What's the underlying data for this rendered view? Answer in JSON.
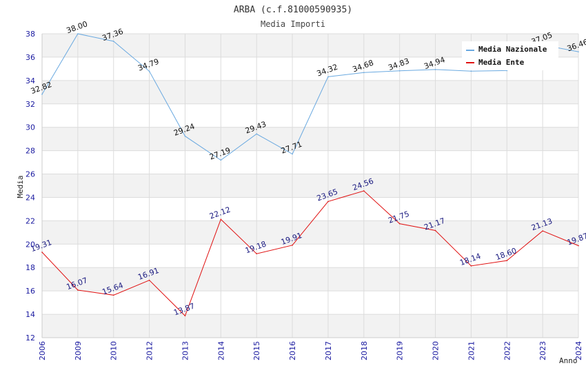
{
  "chart_data": {
    "type": "line",
    "title": "ARBA (c.f.81000590935)",
    "subtitle": "Media Importi",
    "xlabel": "Anno",
    "ylabel": "Media",
    "ylim": [
      12,
      38
    ],
    "yticks": [
      "12",
      "14",
      "16",
      "18",
      "20",
      "22",
      "24",
      "26",
      "28",
      "30",
      "32",
      "34",
      "36",
      "38"
    ],
    "categories": [
      "2006",
      "2009",
      "2010",
      "2012",
      "2013",
      "2014",
      "2015",
      "2016",
      "2017",
      "2018",
      "2019",
      "2020",
      "2021",
      "2022",
      "2023",
      "2024"
    ],
    "series": [
      {
        "name": "Media Nazionale",
        "color": "#6aa9e0",
        "label_color": "#111111",
        "values": [
          32.82,
          38.0,
          37.36,
          34.79,
          29.24,
          27.19,
          29.43,
          27.71,
          34.32,
          34.68,
          34.83,
          34.94,
          34.8,
          34.85,
          37.05,
          36.46
        ],
        "labels": [
          "32.82",
          "38.00",
          "37.36",
          "34.79",
          "29.24",
          "27.19",
          "29.43",
          "27.71",
          "34.32",
          "34.68",
          "34.83",
          "34.94",
          "",
          "",
          "37.05",
          "36.46"
        ]
      },
      {
        "name": "Media Ente",
        "color": "#e01010",
        "label_color": "#1a1a80",
        "values": [
          19.31,
          16.07,
          15.64,
          16.91,
          13.87,
          22.12,
          19.18,
          19.91,
          23.65,
          24.56,
          21.75,
          21.17,
          18.14,
          18.6,
          21.13,
          19.87
        ],
        "labels": [
          "19.31",
          "16.07",
          "15.64",
          "16.91",
          "13.87",
          "22.12",
          "19.18",
          "19.91",
          "23.65",
          "24.56",
          "21.75",
          "21.17",
          "18.14",
          "18.60",
          "21.13",
          "19.87"
        ]
      }
    ],
    "legend_position": "top-right",
    "grid": true
  }
}
